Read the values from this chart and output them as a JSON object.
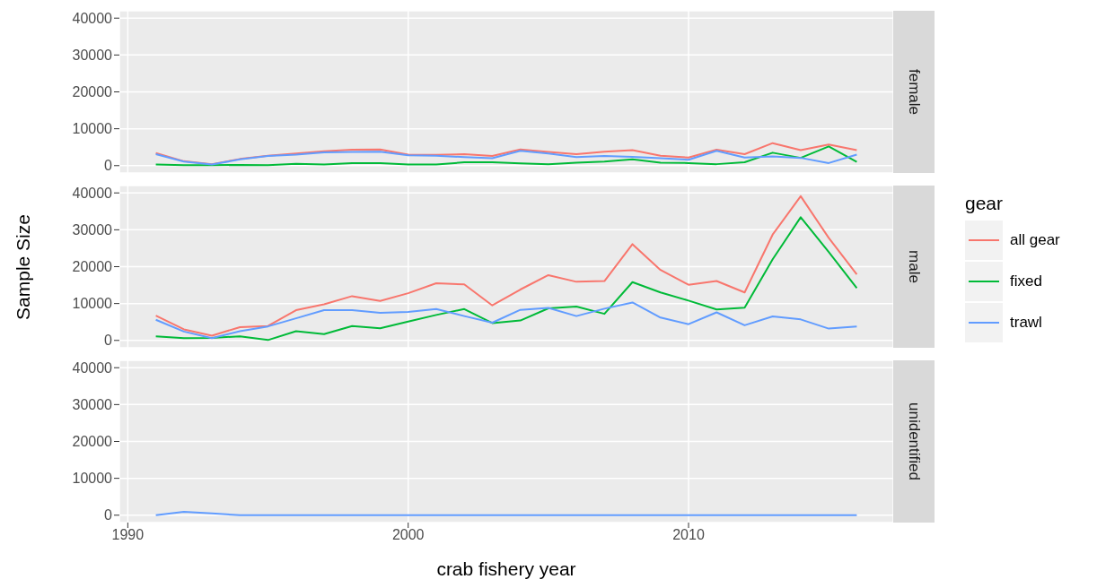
{
  "chart_data": [
    {
      "type": "line",
      "y2label": "female",
      "x": [
        1991,
        1992,
        1993,
        1994,
        1995,
        1996,
        1997,
        1998,
        1999,
        2000,
        2001,
        2002,
        2003,
        2004,
        2005,
        2006,
        2007,
        2008,
        2009,
        2010,
        2011,
        2012,
        2013,
        2014,
        2015,
        2016
      ],
      "series": [
        {
          "color": "#f8766d",
          "values": [
            3400,
            1200,
            400,
            1800,
            2700,
            3300,
            3900,
            4300,
            4400,
            3000,
            2900,
            3100,
            2600,
            4400,
            3700,
            3100,
            3800,
            4200,
            2700,
            2200,
            4300,
            3100,
            6100,
            4200,
            5700,
            4200
          ]
        },
        {
          "color": "#00ba38",
          "values": [
            300,
            100,
            100,
            200,
            100,
            500,
            300,
            700,
            700,
            300,
            300,
            900,
            900,
            600,
            400,
            800,
            1100,
            1700,
            800,
            700,
            400,
            900,
            3500,
            2100,
            5200,
            1000
          ]
        },
        {
          "color": "#619cff",
          "values": [
            3100,
            1100,
            300,
            1700,
            2600,
            3000,
            3600,
            3700,
            3800,
            2800,
            2700,
            2300,
            2000,
            4000,
            3300,
            2300,
            2600,
            2400,
            2000,
            1600,
            4000,
            2200,
            2500,
            2100,
            700,
            3000
          ]
        }
      ],
      "xlim": [
        1989.7,
        2017.3
      ],
      "xticks": [
        1990,
        2000,
        2010
      ],
      "ylim": [
        -2000,
        42000
      ],
      "yticks": [
        0,
        10000,
        20000,
        30000,
        40000
      ],
      "grid": true,
      "tick_labels": "y"
    },
    {
      "type": "line",
      "y2label": "male",
      "ylabel": "Sample Size",
      "legend_title": "gear",
      "legend": "right",
      "x": [
        1991,
        1992,
        1993,
        1994,
        1995,
        1996,
        1997,
        1998,
        1999,
        2000,
        2001,
        2002,
        2003,
        2004,
        2005,
        2006,
        2007,
        2008,
        2009,
        2010,
        2011,
        2012,
        2013,
        2014,
        2015,
        2016
      ],
      "series": [
        {
          "name": "all gear",
          "color": "#f8766d",
          "values": [
            6700,
            3000,
            1300,
            3600,
            3900,
            8200,
            9800,
            12000,
            10700,
            12800,
            15500,
            15200,
            9500,
            13800,
            17700,
            15900,
            16100,
            26100,
            19100,
            15100,
            16100,
            13000,
            28700,
            39100,
            27800,
            17900
          ]
        },
        {
          "name": "fixed",
          "color": "#00ba38",
          "values": [
            1100,
            600,
            700,
            1100,
            100,
            2500,
            1700,
            3900,
            3300,
            5100,
            6900,
            8500,
            4700,
            5400,
            8700,
            9200,
            7200,
            15800,
            13000,
            10800,
            8400,
            8900,
            22000,
            33400,
            24000,
            14200
          ]
        },
        {
          "name": "trawl",
          "color": "#619cff",
          "values": [
            5600,
            2400,
            600,
            2500,
            3800,
            6000,
            8200,
            8200,
            7500,
            7700,
            8500,
            6600,
            4800,
            8300,
            8800,
            6600,
            8600,
            10300,
            6200,
            4400,
            7600,
            4100,
            6500,
            5700,
            3200,
            3800
          ]
        }
      ],
      "xlim": [
        1989.7,
        2017.3
      ],
      "xticks": [
        1990,
        2000,
        2010
      ],
      "ylim": [
        -2000,
        42000
      ],
      "yticks": [
        0,
        10000,
        20000,
        30000,
        40000
      ],
      "grid": true,
      "tick_labels": "y"
    },
    {
      "type": "line",
      "y2label": "unidentified",
      "xlabel": "crab fishery year",
      "x": [
        1991,
        1992,
        1993,
        1994,
        1995,
        1996,
        1997,
        1998,
        1999,
        2000,
        2001,
        2002,
        2003,
        2004,
        2005,
        2006,
        2007,
        2008,
        2009,
        2010,
        2011,
        2012,
        2013,
        2014,
        2015,
        2016
      ],
      "series": [
        {
          "color": "#619cff",
          "values": [
            0,
            900,
            500,
            0,
            0,
            0,
            0,
            0,
            0,
            0,
            0,
            0,
            0,
            0,
            0,
            0,
            0,
            0,
            0,
            0,
            0,
            0,
            0,
            0,
            0,
            0
          ]
        }
      ],
      "xlim": [
        1989.7,
        2017.3
      ],
      "xticks": [
        1990,
        2000,
        2010
      ],
      "ylim": [
        -2000,
        42000
      ],
      "yticks": [
        0,
        10000,
        20000,
        30000,
        40000
      ],
      "grid": true
    }
  ]
}
